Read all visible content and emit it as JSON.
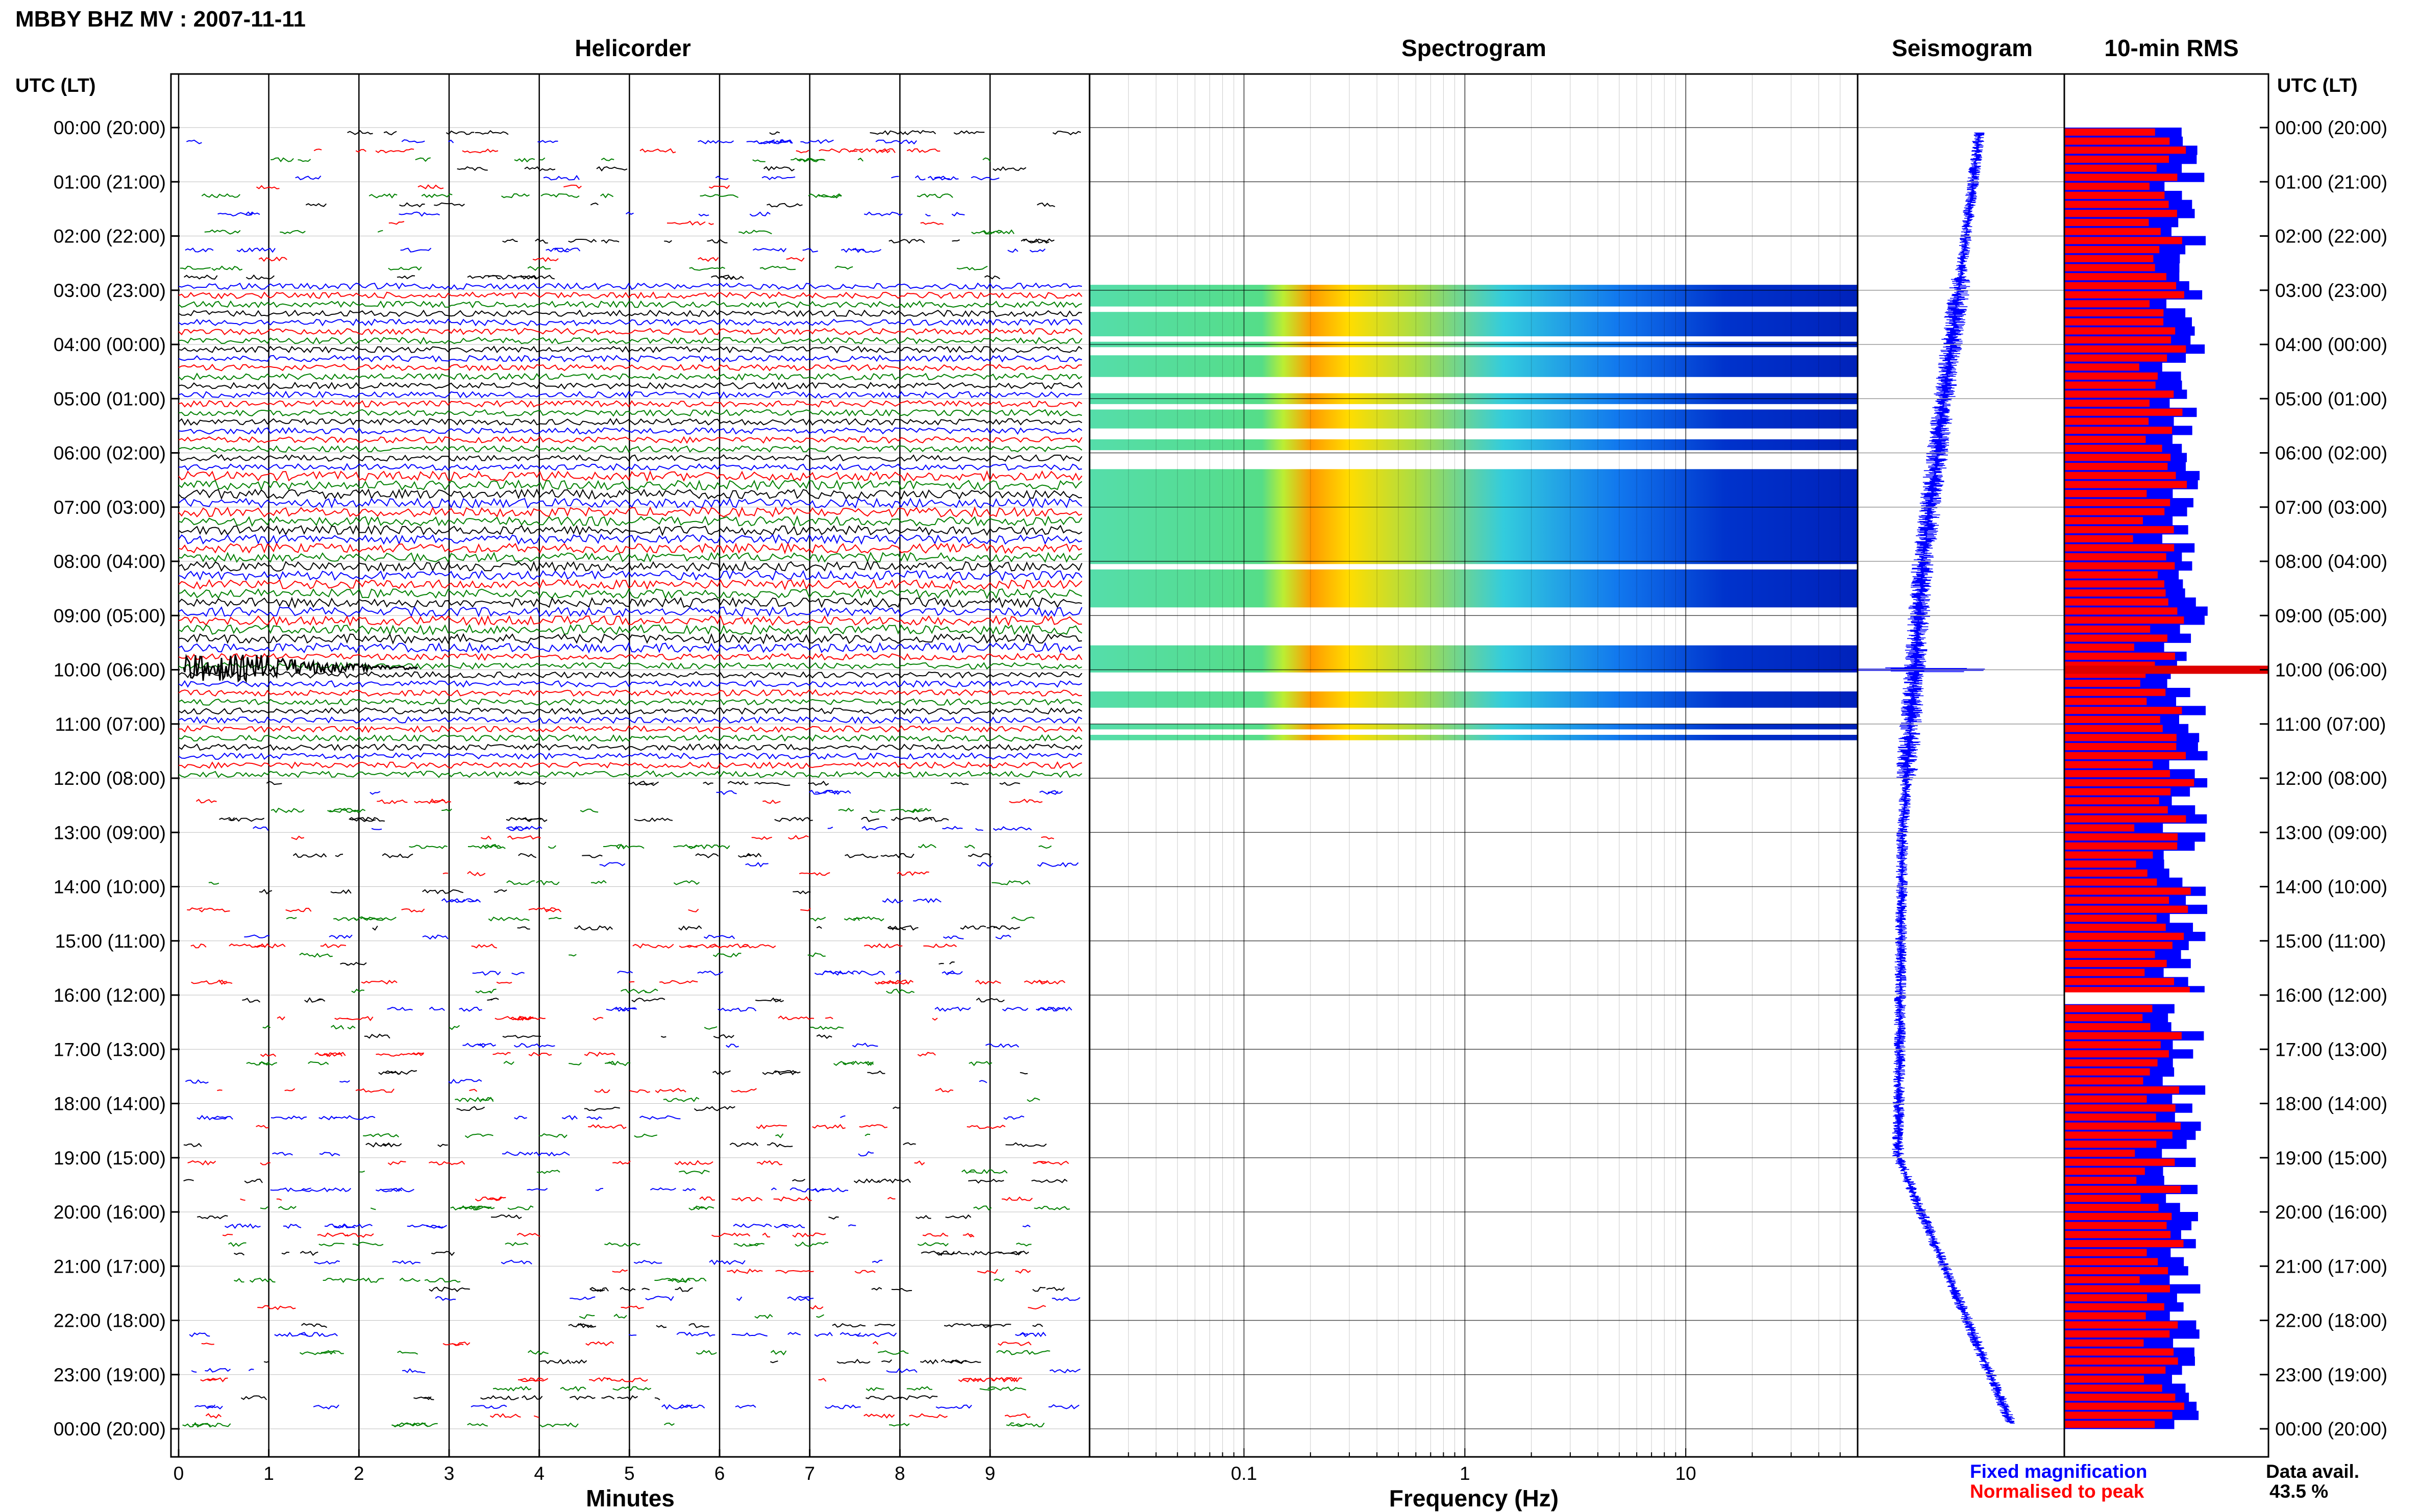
{
  "page": {
    "title": "MBBY BHZ MV : 2007-11-11"
  },
  "panels": {
    "helicorder": {
      "title": "Helicorder",
      "xlabel": "Minutes",
      "xticks": [
        "0",
        "1",
        "2",
        "3",
        "4",
        "5",
        "6",
        "7",
        "8",
        "9"
      ]
    },
    "spectrogram": {
      "title": "Spectrogram",
      "xlabel": "Frequency (Hz)",
      "xticks": [
        "0.1",
        "1",
        "10"
      ]
    },
    "seismogram": {
      "title": "Seismogram"
    },
    "rms": {
      "title": "10-min RMS"
    }
  },
  "axes": {
    "left_label": "UTC (LT)",
    "right_label": "UTC (LT)",
    "hour_ticks": [
      "00:00 (20:00)",
      "01:00 (21:00)",
      "02:00 (22:00)",
      "03:00 (23:00)",
      "04:00 (00:00)",
      "05:00 (01:00)",
      "06:00 (02:00)",
      "07:00 (03:00)",
      "08:00 (04:00)",
      "09:00 (05:00)",
      "10:00 (06:00)",
      "11:00 (07:00)",
      "12:00 (08:00)",
      "13:00 (09:00)",
      "14:00 (10:00)",
      "15:00 (11:00)",
      "16:00 (12:00)",
      "17:00 (13:00)",
      "18:00 (14:00)",
      "19:00 (15:00)",
      "20:00 (16:00)",
      "21:00 (17:00)",
      "22:00 (18:00)",
      "23:00 (19:00)",
      "00:00 (20:00)"
    ]
  },
  "legend": {
    "fixed": "Fixed magnification",
    "normalised": "Normalised to peak",
    "fixed_color": "#0000ff",
    "normalised_color": "#ff0000",
    "avail_label": "Data avail.",
    "avail_value": "43.5 %"
  },
  "chart_data": [
    {
      "type": "line",
      "panel": "helicorder",
      "xlabel": "Minutes",
      "xlim": [
        0,
        10
      ],
      "ylim_hours": [
        0,
        24
      ],
      "trace_colors": [
        "#000000",
        "#0000ff",
        "#ff0000",
        "#008000"
      ],
      "notes": "Six 10-minute trace lines per hour; event near 10:00 UTC (06:00 LT)"
    },
    {
      "type": "heatmap",
      "panel": "spectrogram",
      "xlabel": "Frequency (Hz)",
      "xscale": "log",
      "xlim": [
        0.02,
        60
      ],
      "ylim_hours": [
        0,
        24
      ],
      "colormap": "jet",
      "data_hours": [
        [
          2.9,
          3.3
        ],
        [
          3.4,
          3.85
        ],
        [
          3.95,
          4.05
        ],
        [
          4.2,
          4.6
        ],
        [
          4.9,
          5.1
        ],
        [
          5.2,
          5.55
        ],
        [
          5.75,
          5.95
        ],
        [
          6.3,
          8.05
        ],
        [
          8.15,
          8.85
        ],
        [
          9.55,
          10.05
        ],
        [
          10.4,
          10.7
        ],
        [
          11.0,
          11.1
        ],
        [
          11.2,
          11.3
        ]
      ]
    },
    {
      "type": "line",
      "panel": "seismogram",
      "ylim_hours": [
        0,
        24
      ],
      "color": "#0000ff"
    },
    {
      "type": "bar",
      "panel": "rms",
      "orientation": "horizontal",
      "ylim_hours": [
        0,
        24
      ],
      "series": [
        {
          "name": "Fixed magnification",
          "color": "#0000ff"
        },
        {
          "name": "Normalised to peak",
          "color": "#ff0000"
        }
      ],
      "gap_hours": [
        [
          15.95,
          16.05
        ]
      ],
      "spike_hour": 10.0
    }
  ]
}
